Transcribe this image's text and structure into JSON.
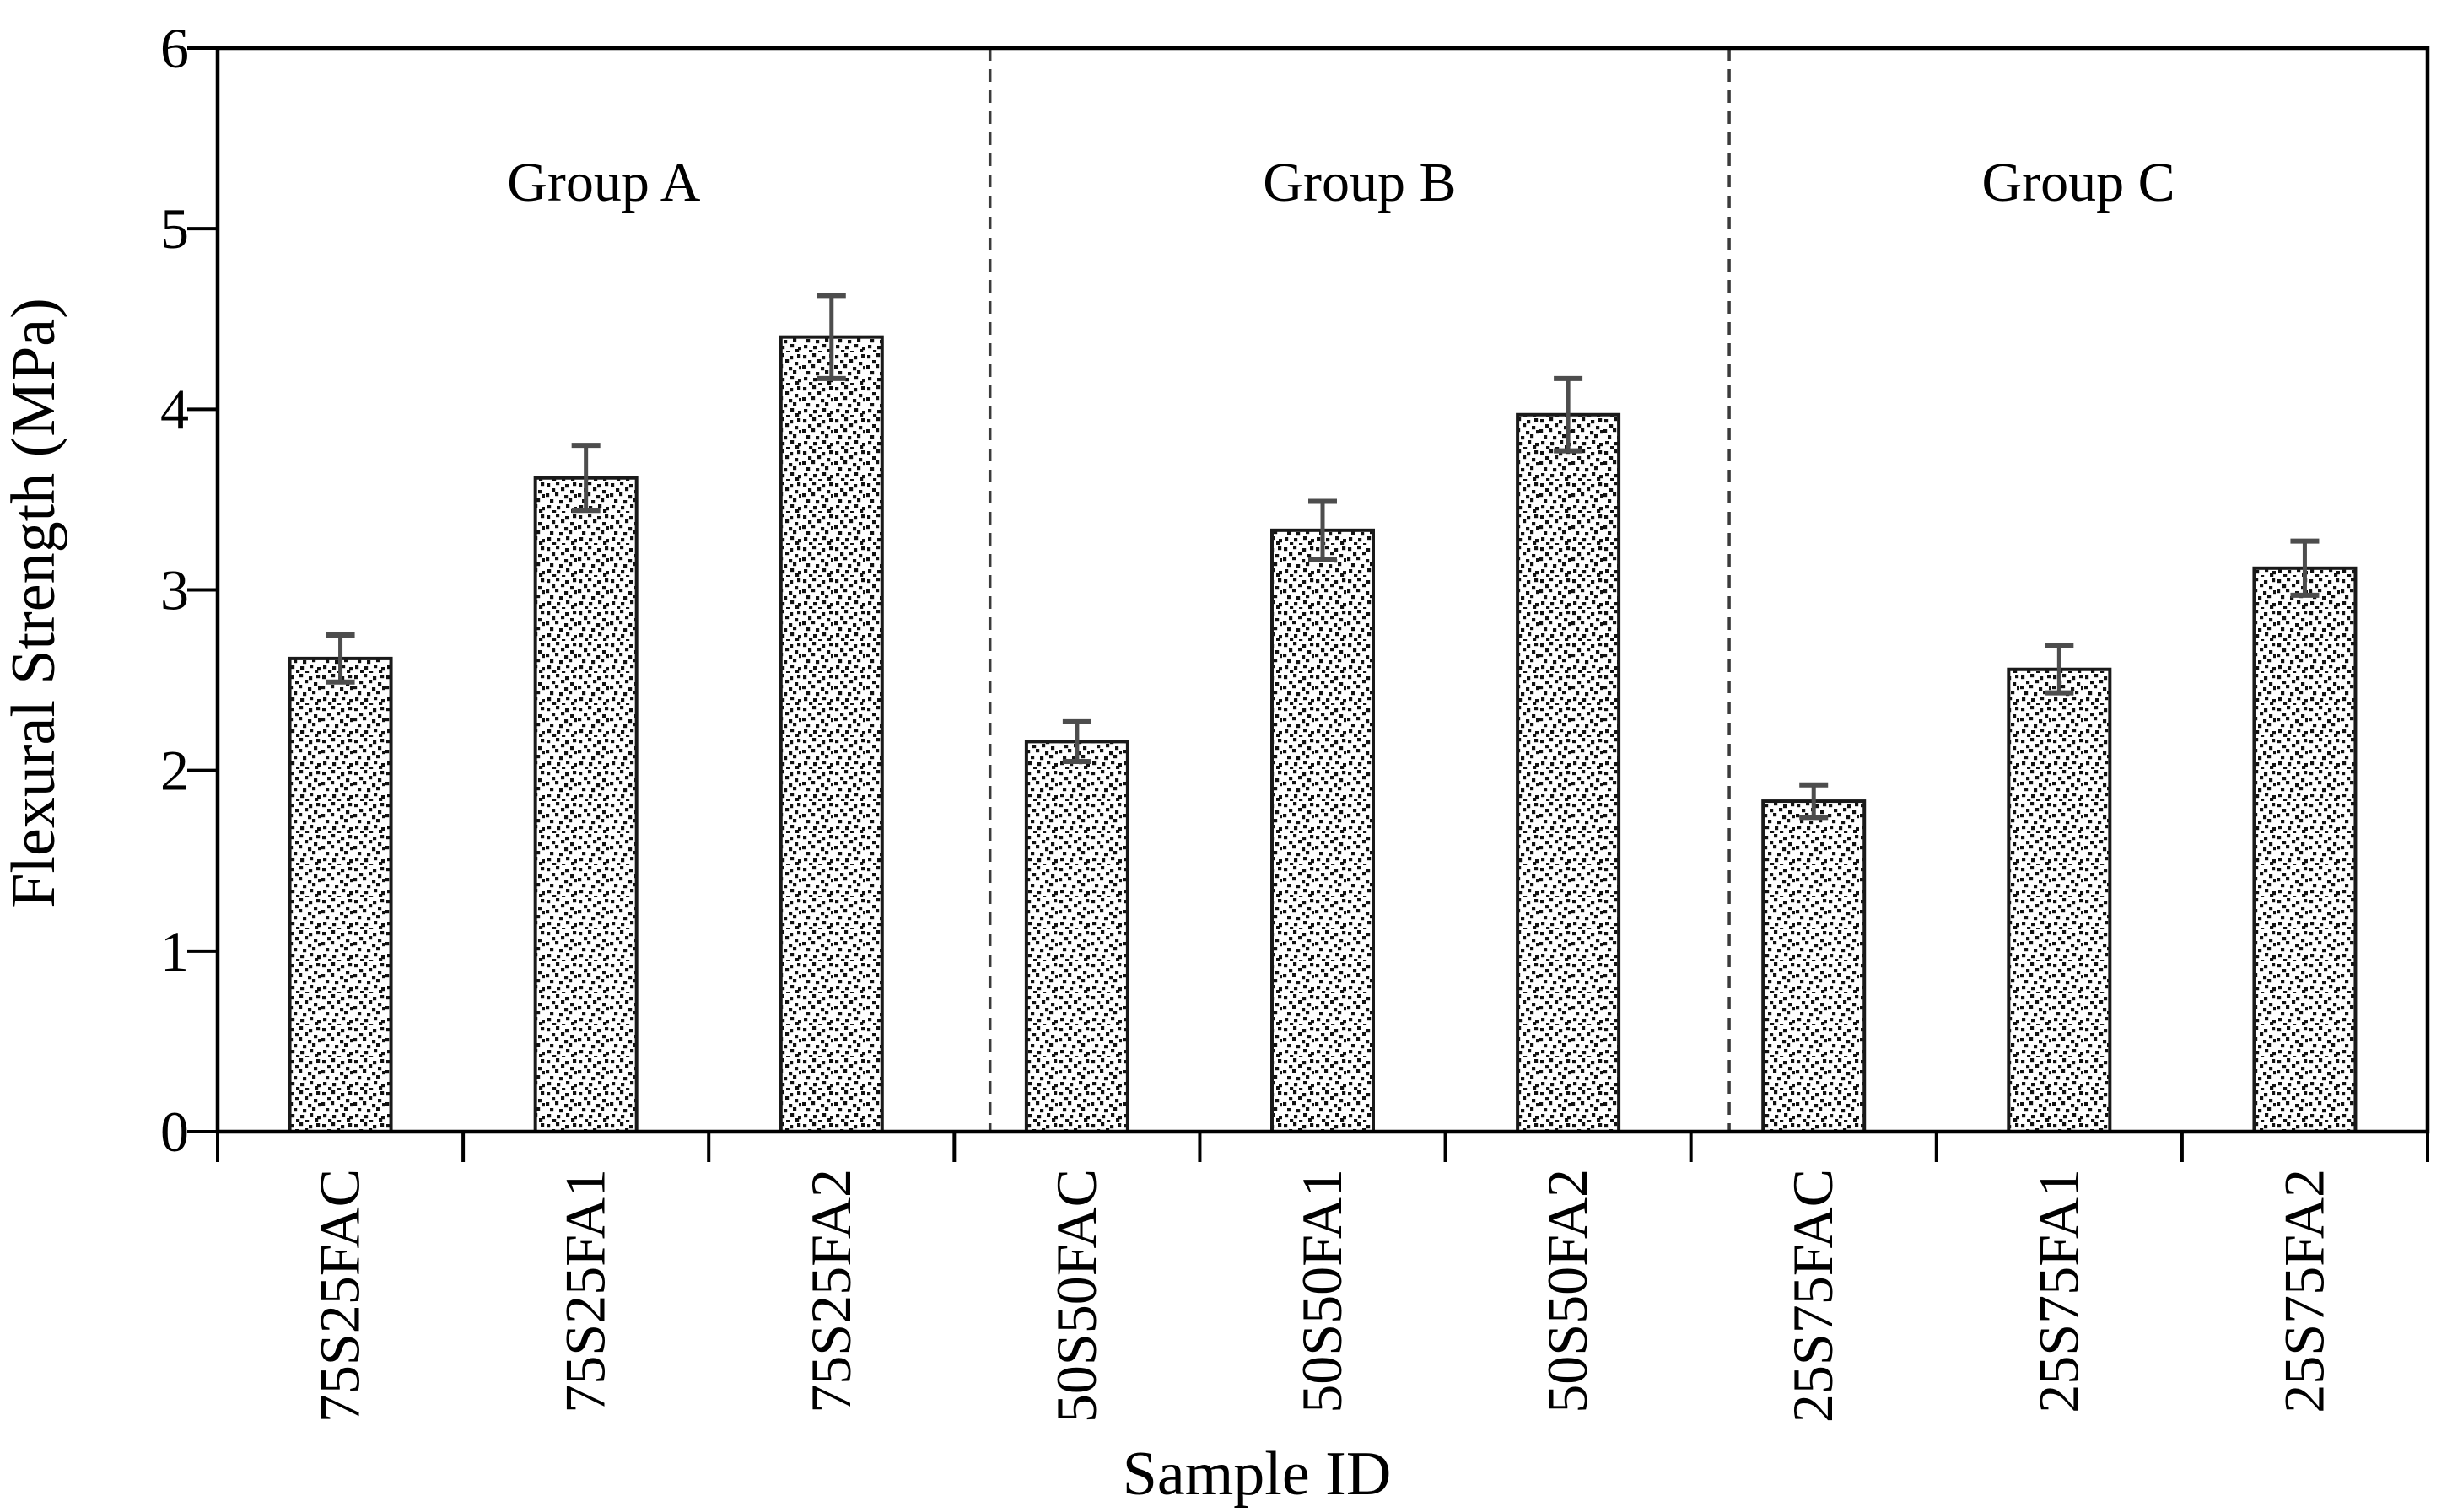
{
  "chart_data": {
    "type": "bar",
    "title": "",
    "xlabel": "Sample ID",
    "ylabel": "Flexural Strength (MPa)",
    "ylim": [
      0,
      6
    ],
    "yticks": [
      0,
      1,
      2,
      3,
      4,
      5,
      6
    ],
    "grid": false,
    "legend": "none",
    "bar_style": "white bars with black stipple (dot) pattern fill and black outline",
    "error_bar_style": "symmetric vertical error bars with end caps, dark gray",
    "categories": [
      "75S25FAC",
      "75S25FA1",
      "75S25FA2",
      "50S50FAC",
      "50S50FA1",
      "50S50FA2",
      "25S75FAC",
      "25S75FA1",
      "25S75FA2"
    ],
    "values": [
      2.62,
      3.62,
      4.4,
      2.16,
      3.33,
      3.97,
      1.83,
      2.56,
      3.12
    ],
    "errors": [
      0.13,
      0.18,
      0.23,
      0.11,
      0.16,
      0.2,
      0.09,
      0.13,
      0.15
    ],
    "groups": [
      {
        "label": "Group A",
        "category_indices": [
          0,
          1,
          2
        ]
      },
      {
        "label": "Group B",
        "category_indices": [
          3,
          4,
          5
        ]
      },
      {
        "label": "Group C",
        "category_indices": [
          6,
          7,
          8
        ]
      }
    ],
    "separators": {
      "style": "dashed vertical lines between groups",
      "count": 2
    },
    "colors": {
      "background": "#ffffff",
      "axis": "#000000",
      "bar_outline": "#1a1a1a",
      "bar_fill_dots": "#111111",
      "error_bar": "#4d4d4d",
      "dashed_line": "#3a3a3a",
      "text": "#000000"
    }
  }
}
